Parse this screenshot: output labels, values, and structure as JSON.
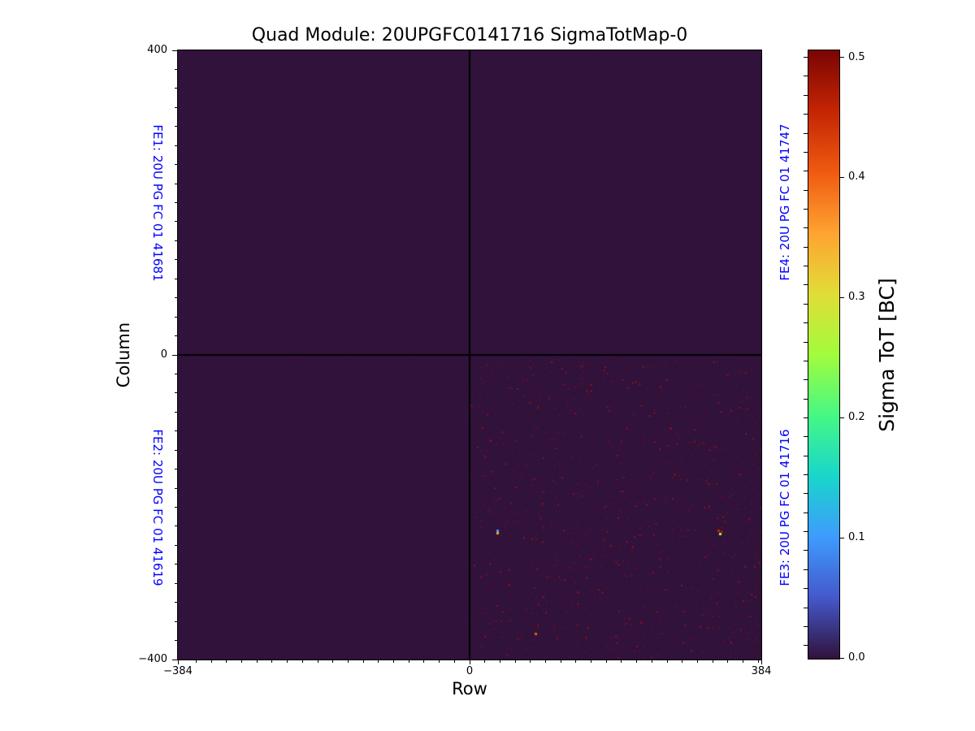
{
  "chart_data": {
    "type": "heatmap",
    "title": "Quad Module: 20UPGFC0141716 SigmaTotMap-0",
    "xlabel": "Row",
    "ylabel": "Column",
    "xlim": [
      -384,
      384
    ],
    "ylim": [
      -400,
      400
    ],
    "x_ticks": [
      {
        "label": "−384",
        "value": -384
      },
      {
        "label": "0",
        "value": 0
      },
      {
        "label": "384",
        "value": 384
      }
    ],
    "y_ticks": [
      {
        "label": "400",
        "value": 400
      },
      {
        "label": "0",
        "value": 0
      },
      {
        "label": "−400",
        "value": -400
      }
    ],
    "x_minor_step": 20,
    "y_minor_step": 25,
    "colorbar": {
      "label": "Sigma ToT [BC]",
      "range": [
        0.0,
        0.5
      ],
      "ticks": [
        {
          "label": "0.0",
          "value": 0.0
        },
        {
          "label": "0.1",
          "value": 0.1
        },
        {
          "label": "0.2",
          "value": 0.2
        },
        {
          "label": "0.3",
          "value": 0.3
        },
        {
          "label": "0.4",
          "value": 0.4
        },
        {
          "label": "0.5",
          "value": 0.5
        }
      ],
      "colormap": "turbo",
      "colormap_stops": [
        "#30123b",
        "#4458cb",
        "#3e9bfe",
        "#18d6cb",
        "#46f884",
        "#a2fc3c",
        "#e1dd37",
        "#fea331",
        "#ef5a11",
        "#c42503",
        "#7a0403"
      ]
    },
    "quadrants": [
      {
        "name": "FE1",
        "label": "FE1: 20U PG FC 01 41681",
        "position": "top-left",
        "row_range": [
          -384,
          0
        ],
        "col_range": [
          0,
          400
        ],
        "typical_value": 0.0
      },
      {
        "name": "FE2",
        "label": "FE2: 20U PG FC 01 41619",
        "position": "bottom-left",
        "row_range": [
          -384,
          0
        ],
        "col_range": [
          -400,
          0
        ],
        "typical_value": 0.0
      },
      {
        "name": "FE3",
        "label": "FE3: 20U PG FC 01 41716",
        "position": "bottom-right",
        "row_range": [
          0,
          384
        ],
        "col_range": [
          -400,
          0
        ],
        "typical_value": 0.02,
        "note": "sparse speckle noise of pixels up to ~0.5"
      },
      {
        "name": "FE4",
        "label": "FE4: 20U PG FC 01 41747",
        "position": "top-right",
        "row_range": [
          0,
          384
        ],
        "col_range": [
          0,
          400
        ],
        "typical_value": 0.0
      }
    ],
    "base_value": 0.0,
    "background_color": "#30123b",
    "divider_color": "#000000",
    "fe_label_color": "#0000ff",
    "outlier_points": [
      {
        "row": 36,
        "col": -230,
        "value": 0.1
      },
      {
        "row": 36,
        "col": -234,
        "value": 0.35
      },
      {
        "row": 327,
        "col": -230,
        "value": 0.45
      },
      {
        "row": 332,
        "col": -231,
        "value": 0.48
      },
      {
        "row": 329,
        "col": -235,
        "value": 0.25
      },
      {
        "row": 87,
        "col": -366,
        "value": 0.4
      }
    ],
    "noise_texture": {
      "seed": 987654321,
      "speckle_attempts": 5200,
      "speckle_color": "#7a1020",
      "speckle_color_bright": "#b41414",
      "faint_dot_color": "#5c1634",
      "faint_row_spacing": 37,
      "faint_row_alpha": 0.22
    }
  }
}
